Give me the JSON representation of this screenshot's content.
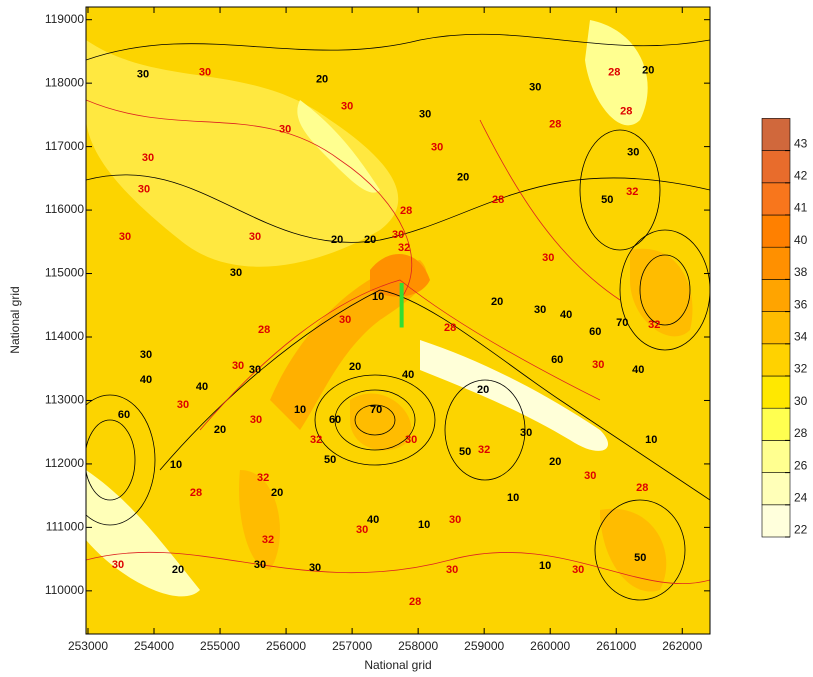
{
  "chart_data": {
    "type": "contour",
    "xlabel": "National grid",
    "ylabel": "National grid",
    "xlim": [
      252970,
      262420
    ],
    "ylim": [
      109320,
      119200
    ],
    "xticks": [
      253000,
      254000,
      255000,
      256000,
      257000,
      258000,
      259000,
      260000,
      261000,
      262000
    ],
    "yticks": [
      110000,
      111000,
      112000,
      113000,
      114000,
      115000,
      116000,
      117000,
      118000,
      119000
    ],
    "colorbar": {
      "levels": [
        22,
        24,
        26,
        28,
        30,
        32,
        34,
        36,
        38,
        40,
        41,
        42,
        43
      ],
      "colors": [
        "#ffffdc",
        "#ffffb8",
        "#ffff90",
        "#ffff50",
        "#ffe800",
        "#ffd200",
        "#ffbc00",
        "#ffa400",
        "#ff9000",
        "#ff8000",
        "#f8761c",
        "#e86c2c",
        "#d0683c"
      ]
    },
    "marker": {
      "x": [
        257750,
        257750
      ],
      "y": [
        114150,
        114850
      ],
      "color": "#33dd33"
    },
    "contour_labels": [
      {
        "value": 30,
        "x": 253833,
        "y": 118132,
        "color": "#000000"
      },
      {
        "value": 30,
        "x": 254773,
        "y": 118164,
        "color": "#dd0000"
      },
      {
        "value": 30,
        "x": 253909,
        "y": 116823,
        "color": "#dd0000"
      },
      {
        "value": 30,
        "x": 253848,
        "y": 116319,
        "color": "#dd0000"
      },
      {
        "value": 30,
        "x": 253561,
        "y": 115577,
        "color": "#dd0000"
      },
      {
        "value": 30,
        "x": 255242,
        "y": 115009,
        "color": "#000000"
      },
      {
        "value": 30,
        "x": 255530,
        "y": 115577,
        "color": "#dd0000"
      },
      {
        "value": 30,
        "x": 255985,
        "y": 117265,
        "color": "#dd0000"
      },
      {
        "value": 20,
        "x": 256545,
        "y": 118054,
        "color": "#000000"
      },
      {
        "value": 30,
        "x": 256924,
        "y": 117628,
        "color": "#dd0000"
      },
      {
        "value": 30,
        "x": 258106,
        "y": 117502,
        "color": "#000000"
      },
      {
        "value": 30,
        "x": 258288,
        "y": 116981,
        "color": "#dd0000"
      },
      {
        "value": 20,
        "x": 258682,
        "y": 116508,
        "color": "#000000"
      },
      {
        "value": 28,
        "x": 257818,
        "y": 115987,
        "color": "#dd0000"
      },
      {
        "value": 20,
        "x": 256773,
        "y": 115530,
        "color": "#000000"
      },
      {
        "value": 20,
        "x": 257273,
        "y": 115530,
        "color": "#000000"
      },
      {
        "value": 30,
        "x": 257697,
        "y": 115609,
        "color": "#dd0000"
      },
      {
        "value": 32,
        "x": 257788,
        "y": 115404,
        "color": "#dd0000"
      },
      {
        "value": 30,
        "x": 259773,
        "y": 117927,
        "color": "#000000"
      },
      {
        "value": 28,
        "x": 259212,
        "y": 116161,
        "color": "#dd0000"
      },
      {
        "value": 30,
        "x": 259970,
        "y": 115246,
        "color": "#dd0000"
      },
      {
        "value": 20,
        "x": 259197,
        "y": 114552,
        "color": "#000000"
      },
      {
        "value": 30,
        "x": 259848,
        "y": 114426,
        "color": "#000000"
      },
      {
        "value": 40,
        "x": 260242,
        "y": 114347,
        "color": "#000000"
      },
      {
        "value": 60,
        "x": 260682,
        "y": 114079,
        "color": "#000000"
      },
      {
        "value": 70,
        "x": 261091,
        "y": 114221,
        "color": "#000000"
      },
      {
        "value": 32,
        "x": 261576,
        "y": 114189,
        "color": "#dd0000"
      },
      {
        "value": 50,
        "x": 260864,
        "y": 116161,
        "color": "#000000"
      },
      {
        "value": 30,
        "x": 261258,
        "y": 116902,
        "color": "#000000"
      },
      {
        "value": 32,
        "x": 261242,
        "y": 116287,
        "color": "#dd0000"
      },
      {
        "value": 28,
        "x": 260970,
        "y": 118164,
        "color": "#dd0000"
      },
      {
        "value": 20,
        "x": 261485,
        "y": 118196,
        "color": "#000000"
      },
      {
        "value": 28,
        "x": 261152,
        "y": 117549,
        "color": "#dd0000"
      },
      {
        "value": 28,
        "x": 260076,
        "y": 117344,
        "color": "#dd0000"
      },
      {
        "value": 28,
        "x": 258485,
        "y": 114142,
        "color": "#dd0000"
      },
      {
        "value": 10,
        "x": 257394,
        "y": 114631,
        "color": "#000000"
      },
      {
        "value": 30,
        "x": 256894,
        "y": 114268,
        "color": "#dd0000"
      },
      {
        "value": 28,
        "x": 255667,
        "y": 114110,
        "color": "#dd0000"
      },
      {
        "value": 30,
        "x": 253879,
        "y": 113716,
        "color": "#000000"
      },
      {
        "value": 40,
        "x": 253879,
        "y": 113322,
        "color": "#000000"
      },
      {
        "value": 40,
        "x": 254727,
        "y": 113211,
        "color": "#000000"
      },
      {
        "value": 30,
        "x": 255273,
        "y": 113543,
        "color": "#dd0000"
      },
      {
        "value": 30,
        "x": 255530,
        "y": 113480,
        "color": "#000000"
      },
      {
        "value": 20,
        "x": 255000,
        "y": 112533,
        "color": "#000000"
      },
      {
        "value": 10,
        "x": 254333,
        "y": 111981,
        "color": "#000000"
      },
      {
        "value": 20,
        "x": 258985,
        "y": 113164,
        "color": "#000000"
      },
      {
        "value": 40,
        "x": 257848,
        "y": 113401,
        "color": "#000000"
      },
      {
        "value": 20,
        "x": 257045,
        "y": 113527,
        "color": "#000000"
      },
      {
        "value": 70,
        "x": 257364,
        "y": 112849,
        "color": "#000000"
      },
      {
        "value": 60,
        "x": 256742,
        "y": 112691,
        "color": "#000000"
      },
      {
        "value": 50,
        "x": 256667,
        "y": 112060,
        "color": "#000000"
      },
      {
        "value": 30,
        "x": 257894,
        "y": 112375,
        "color": "#dd0000"
      },
      {
        "value": 50,
        "x": 258712,
        "y": 112186,
        "color": "#000000"
      },
      {
        "value": 32,
        "x": 259000,
        "y": 112218,
        "color": "#dd0000"
      },
      {
        "value": 30,
        "x": 259636,
        "y": 112486,
        "color": "#000000"
      },
      {
        "value": 20,
        "x": 260076,
        "y": 112028,
        "color": "#000000"
      },
      {
        "value": 60,
        "x": 260106,
        "y": 113637,
        "color": "#000000"
      },
      {
        "value": 30,
        "x": 260727,
        "y": 113559,
        "color": "#dd0000"
      },
      {
        "value": 40,
        "x": 261333,
        "y": 113480,
        "color": "#000000"
      },
      {
        "value": 10,
        "x": 261530,
        "y": 112375,
        "color": "#000000"
      },
      {
        "value": 28,
        "x": 261394,
        "y": 111618,
        "color": "#dd0000"
      },
      {
        "value": 30,
        "x": 260606,
        "y": 111808,
        "color": "#dd0000"
      },
      {
        "value": 10,
        "x": 259439,
        "y": 111461,
        "color": "#000000"
      },
      {
        "value": 10,
        "x": 259924,
        "y": 110388,
        "color": "#000000"
      },
      {
        "value": 30,
        "x": 260424,
        "y": 110325,
        "color": "#dd0000"
      },
      {
        "value": 50,
        "x": 261364,
        "y": 110514,
        "color": "#000000"
      },
      {
        "value": 30,
        "x": 258515,
        "y": 110325,
        "color": "#dd0000"
      },
      {
        "value": 30,
        "x": 258561,
        "y": 111114,
        "color": "#dd0000"
      },
      {
        "value": 28,
        "x": 257955,
        "y": 109820,
        "color": "#dd0000"
      },
      {
        "value": 30,
        "x": 256439,
        "y": 110356,
        "color": "#000000"
      },
      {
        "value": 10,
        "x": 258091,
        "y": 111035,
        "color": "#000000"
      },
      {
        "value": 40,
        "x": 257318,
        "y": 111114,
        "color": "#000000"
      },
      {
        "value": 30,
        "x": 257152,
        "y": 110956,
        "color": "#dd0000"
      },
      {
        "value": 30,
        "x": 255606,
        "y": 110404,
        "color": "#000000"
      },
      {
        "value": 20,
        "x": 254364,
        "y": 110325,
        "color": "#000000"
      },
      {
        "value": 30,
        "x": 253455,
        "y": 110404,
        "color": "#dd0000"
      },
      {
        "value": 28,
        "x": 254636,
        "y": 111539,
        "color": "#dd0000"
      },
      {
        "value": 20,
        "x": 255864,
        "y": 111539,
        "color": "#000000"
      },
      {
        "value": 32,
        "x": 255727,
        "y": 110798,
        "color": "#dd0000"
      },
      {
        "value": 32,
        "x": 255652,
        "y": 111776,
        "color": "#dd0000"
      },
      {
        "value": 60,
        "x": 253545,
        "y": 112770,
        "color": "#000000"
      },
      {
        "value": 30,
        "x": 255545,
        "y": 112691,
        "color": "#dd0000"
      },
      {
        "value": 10,
        "x": 256212,
        "y": 112849,
        "color": "#000000"
      },
      {
        "value": 32,
        "x": 256455,
        "y": 112375,
        "color": "#dd0000"
      },
      {
        "value": 30,
        "x": 254439,
        "y": 112928,
        "color": "#dd0000"
      }
    ]
  }
}
